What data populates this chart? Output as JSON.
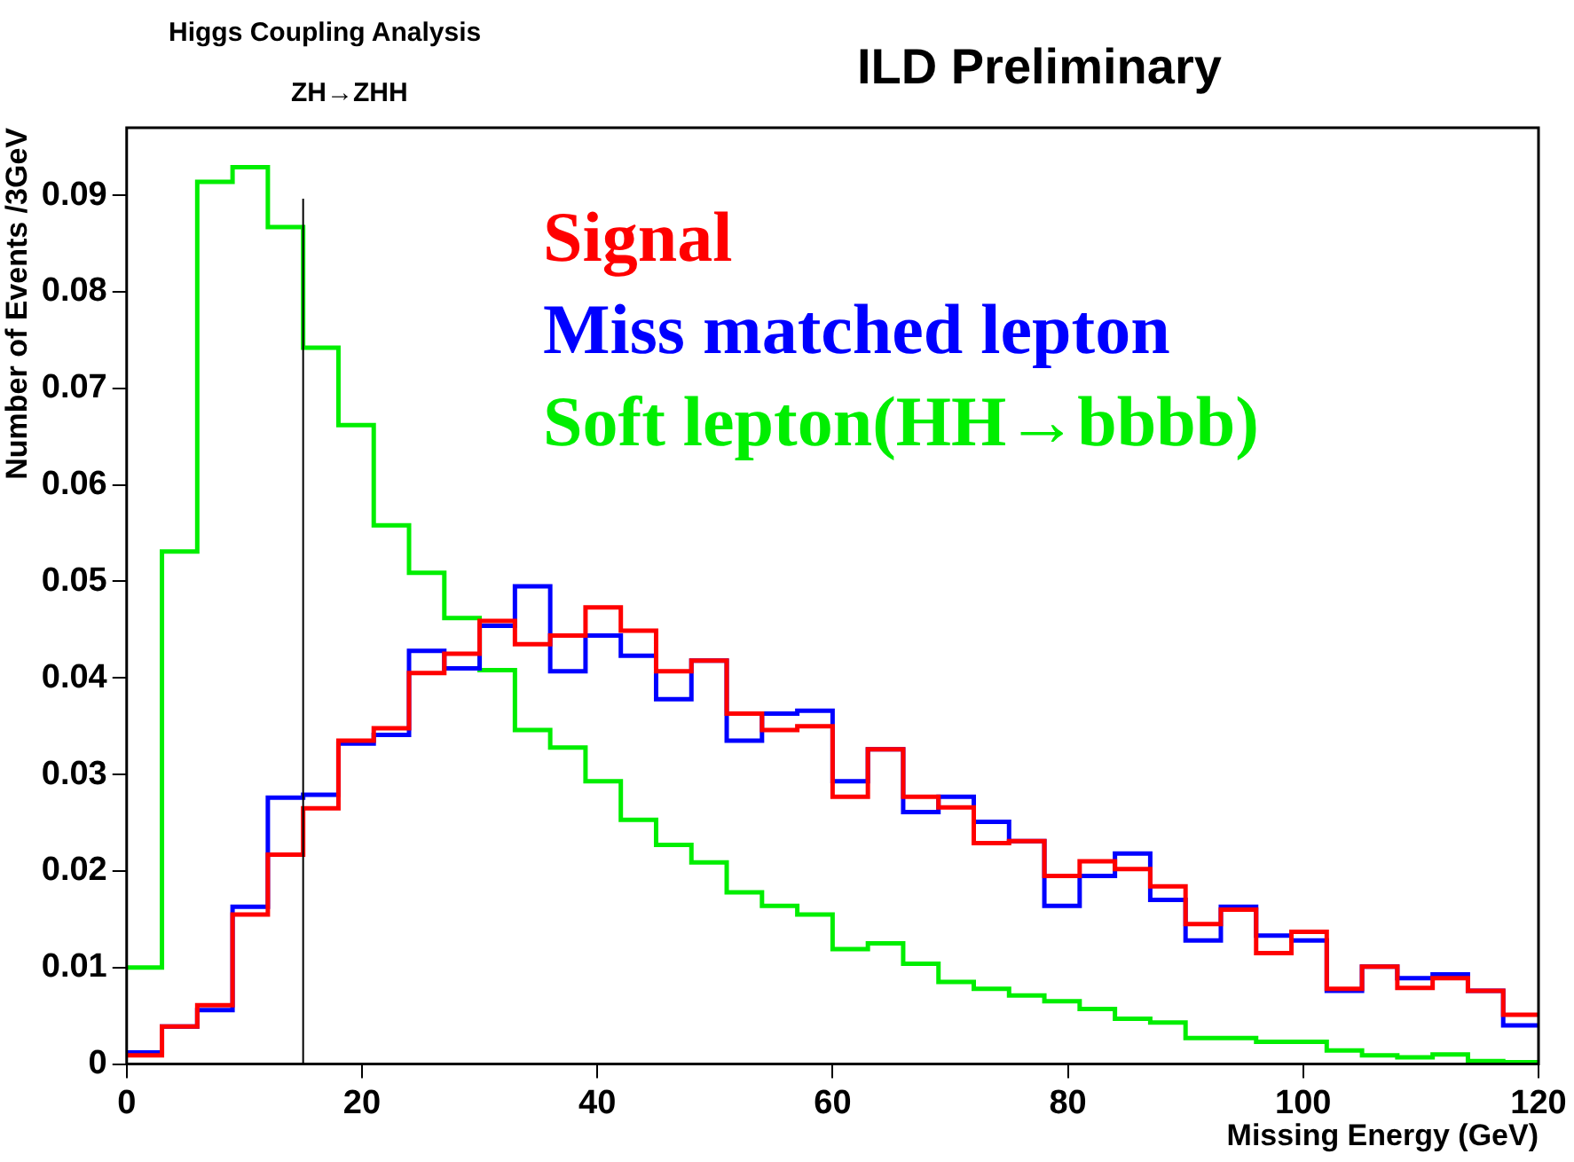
{
  "chart_data": {
    "type": "histogram",
    "title": "Higgs Coupling Analysis",
    "subtitle": "ZH→ZHH",
    "annotations": [
      "ILD Preliminary"
    ],
    "xlabel": "Missing Energy (GeV)",
    "ylabel": "Number of Events /3GeV",
    "bins": [
      0,
      3,
      6,
      9,
      12,
      15,
      18,
      21,
      24,
      27,
      30,
      33,
      36,
      39,
      42,
      45,
      48,
      51,
      54,
      57,
      60,
      63,
      66,
      69,
      72,
      75,
      78,
      81,
      84,
      87,
      90,
      93,
      96,
      99,
      102,
      105,
      108,
      111,
      114,
      117,
      120
    ],
    "series": [
      {
        "name": "Signal",
        "color": "#ff0000",
        "values": [
          0.0009,
          0.0039,
          0.0061,
          0.0155,
          0.0217,
          0.0265,
          0.0335,
          0.0348,
          0.0405,
          0.0425,
          0.0459,
          0.0435,
          0.0444,
          0.0473,
          0.0449,
          0.0407,
          0.0418,
          0.0363,
          0.0346,
          0.035,
          0.0277,
          0.0326,
          0.0277,
          0.0266,
          0.0229,
          0.0231,
          0.0195,
          0.021,
          0.0202,
          0.0184,
          0.0145,
          0.016,
          0.0115,
          0.0137,
          0.0078,
          0.0101,
          0.0079,
          0.0089,
          0.0076,
          0.0051
        ]
      },
      {
        "name": "Miss matched lepton",
        "color": "#0000ff",
        "values": [
          0.0012,
          0.0039,
          0.0056,
          0.0163,
          0.0276,
          0.0279,
          0.0332,
          0.0341,
          0.0428,
          0.041,
          0.0454,
          0.0495,
          0.0407,
          0.0444,
          0.0423,
          0.0378,
          0.0418,
          0.0335,
          0.0363,
          0.0366,
          0.0293,
          0.0326,
          0.0261,
          0.0277,
          0.0251,
          0.0231,
          0.0164,
          0.0195,
          0.0218,
          0.017,
          0.0128,
          0.0163,
          0.0133,
          0.0128,
          0.0076,
          0.0101,
          0.0089,
          0.0093,
          0.0076,
          0.004
        ]
      },
      {
        "name": "Soft lepton(HH→bbbb)",
        "color": "#00ee00",
        "values": [
          0.01,
          0.0531,
          0.0914,
          0.0929,
          0.0867,
          0.0742,
          0.0662,
          0.0558,
          0.0509,
          0.0462,
          0.0408,
          0.0346,
          0.0328,
          0.0293,
          0.0253,
          0.0227,
          0.0209,
          0.0178,
          0.0164,
          0.0155,
          0.0119,
          0.0125,
          0.0104,
          0.0085,
          0.0078,
          0.0071,
          0.0065,
          0.0057,
          0.0047,
          0.0043,
          0.0027,
          0.0027,
          0.0023,
          0.0023,
          0.0014,
          0.0009,
          0.0007,
          0.001,
          0.0003,
          0.0002
        ]
      }
    ],
    "xlim": [
      0,
      120
    ],
    "xticks": [
      0,
      20,
      40,
      60,
      80,
      100,
      120
    ],
    "ylim": [
      0,
      0.097
    ],
    "yticks": [
      0,
      0.01,
      0.02,
      0.03,
      0.04,
      0.05,
      0.06,
      0.07,
      0.08,
      0.09
    ],
    "ref_lines": [
      {
        "axis": "x",
        "value": 15,
        "color": "#000000"
      }
    ],
    "legend": "top right",
    "grid": false
  }
}
